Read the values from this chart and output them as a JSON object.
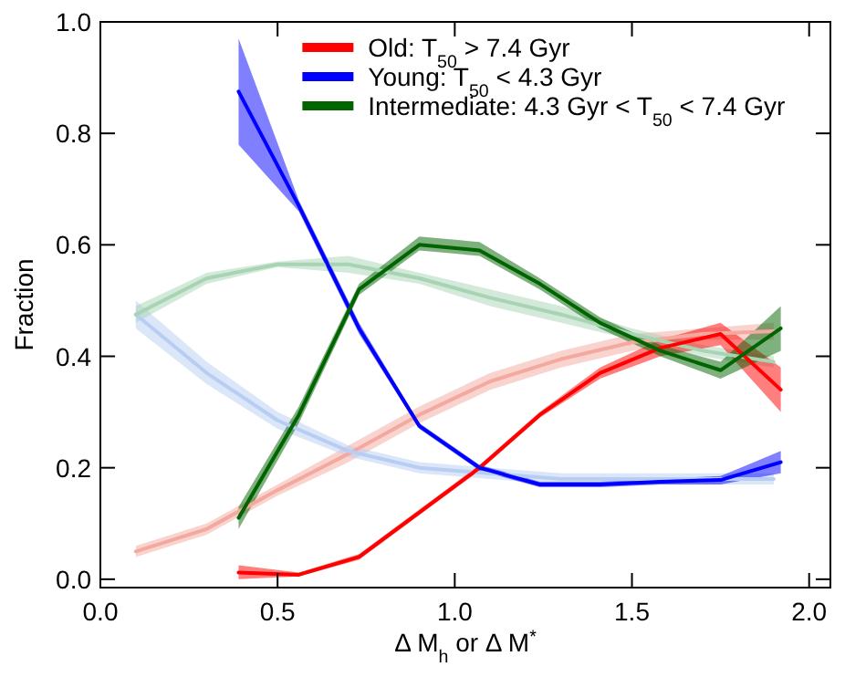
{
  "chart_data": {
    "type": "line",
    "xlabel": "Δ M$_{h}$ or Δ M$^{*}$",
    "ylabel": "Fraction",
    "xlim": [
      0,
      2.06
    ],
    "ylim": [
      -0.015,
      1.0
    ],
    "xticks": [
      {
        "value": 0,
        "label": "0.0"
      },
      {
        "value": 0.5,
        "label": "0.5"
      },
      {
        "value": 1,
        "label": "1.0"
      },
      {
        "value": 1.5,
        "label": "1.5"
      },
      {
        "value": 2,
        "label": "2.0"
      }
    ],
    "yticks": [
      {
        "value": 0,
        "label": "0.0"
      },
      {
        "value": 0.2,
        "label": "0.2"
      },
      {
        "value": 0.4,
        "label": "0.4"
      },
      {
        "value": 0.6,
        "label": "0.6"
      },
      {
        "value": 0.8,
        "label": "0.8"
      },
      {
        "value": 1,
        "label": "1.0"
      }
    ],
    "legend": "top right",
    "grid": false,
    "series": [
      {
        "color": "#f4a9a0",
        "x": [
          0.1,
          0.3,
          0.5,
          0.7,
          0.9,
          1.1,
          1.3,
          1.5,
          1.7,
          1.9
        ],
        "values": [
          0.05,
          0.09,
          0.16,
          0.225,
          0.295,
          0.355,
          0.395,
          0.425,
          0.44,
          0.445
        ],
        "lower": [
          0.04,
          0.08,
          0.15,
          0.21,
          0.28,
          0.34,
          0.38,
          0.41,
          0.43,
          0.43
        ],
        "upper": [
          0.06,
          0.1,
          0.17,
          0.24,
          0.31,
          0.37,
          0.41,
          0.44,
          0.45,
          0.46
        ]
      },
      {
        "color": "#b8cdf4",
        "x": [
          0.1,
          0.3,
          0.5,
          0.7,
          0.9,
          1.1,
          1.3,
          1.5,
          1.7,
          1.9
        ],
        "values": [
          0.475,
          0.37,
          0.285,
          0.23,
          0.2,
          0.19,
          0.18,
          0.18,
          0.18,
          0.18
        ],
        "lower": [
          0.45,
          0.35,
          0.27,
          0.22,
          0.19,
          0.18,
          0.17,
          0.17,
          0.17,
          0.17
        ],
        "upper": [
          0.5,
          0.39,
          0.3,
          0.24,
          0.21,
          0.2,
          0.19,
          0.19,
          0.19,
          0.19
        ]
      },
      {
        "color": "#a8d4b4",
        "x": [
          0.1,
          0.3,
          0.5,
          0.7,
          0.9,
          1.1,
          1.3,
          1.5,
          1.7,
          1.9
        ],
        "values": [
          0.475,
          0.54,
          0.565,
          0.565,
          0.54,
          0.505,
          0.475,
          0.44,
          0.41,
          0.39
        ],
        "lower": [
          0.46,
          0.53,
          0.56,
          0.55,
          0.53,
          0.49,
          0.46,
          0.43,
          0.4,
          0.38
        ],
        "upper": [
          0.49,
          0.55,
          0.57,
          0.58,
          0.55,
          0.52,
          0.49,
          0.45,
          0.42,
          0.4
        ]
      },
      {
        "name": "Old: T$_{50}$ > 7.4 Gyr",
        "color": "#ff0000",
        "x": [
          0.39,
          0.56,
          0.73,
          0.9,
          1.07,
          1.24,
          1.41,
          1.58,
          1.75,
          1.92
        ],
        "values": [
          0.012,
          0.008,
          0.04,
          0.12,
          0.2,
          0.295,
          0.37,
          0.415,
          0.44,
          0.34
        ],
        "lower": [
          0.0,
          0.005,
          0.035,
          0.115,
          0.195,
          0.29,
          0.36,
          0.4,
          0.42,
          0.3
        ],
        "upper": [
          0.025,
          0.012,
          0.045,
          0.125,
          0.205,
          0.3,
          0.38,
          0.43,
          0.46,
          0.38
        ]
      },
      {
        "name": "Young: T$_{50}$ < 4.3 Gyr",
        "color": "#0000ff",
        "x": [
          0.39,
          0.56,
          0.73,
          0.9,
          1.07,
          1.24,
          1.41,
          1.58,
          1.75,
          1.92
        ],
        "values": [
          0.875,
          0.67,
          0.45,
          0.275,
          0.2,
          0.17,
          0.17,
          0.175,
          0.178,
          0.21
        ],
        "lower": [
          0.78,
          0.66,
          0.44,
          0.27,
          0.195,
          0.165,
          0.165,
          0.17,
          0.17,
          0.19
        ],
        "upper": [
          0.97,
          0.68,
          0.46,
          0.28,
          0.205,
          0.175,
          0.175,
          0.18,
          0.185,
          0.23
        ]
      },
      {
        "name": "Intermediate: 4.3 Gyr < T$_{50}$ < 7.4 Gyr",
        "color": "#006400",
        "x": [
          0.39,
          0.56,
          0.73,
          0.9,
          1.07,
          1.24,
          1.41,
          1.58,
          1.75,
          1.92
        ],
        "values": [
          0.11,
          0.295,
          0.52,
          0.6,
          0.59,
          0.53,
          0.46,
          0.41,
          0.375,
          0.45
        ],
        "lower": [
          0.09,
          0.28,
          0.51,
          0.59,
          0.58,
          0.52,
          0.45,
          0.4,
          0.36,
          0.41
        ],
        "upper": [
          0.13,
          0.31,
          0.53,
          0.615,
          0.605,
          0.54,
          0.47,
          0.42,
          0.39,
          0.49
        ]
      }
    ]
  }
}
